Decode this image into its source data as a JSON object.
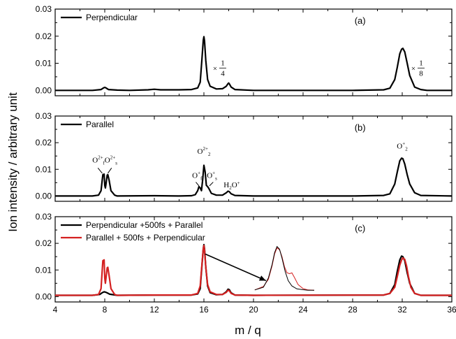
{
  "chart_data": {
    "type": "line",
    "xlabel": "m / q",
    "ylabel": "Ion intensity / arbitrary unit",
    "xlim": [
      4,
      36
    ],
    "xticks": [
      "4",
      "8",
      "12",
      "16",
      "20",
      "24",
      "28",
      "32",
      "36"
    ],
    "panels": [
      {
        "label": "(a)",
        "ylim": [
          -0.002,
          0.03
        ],
        "yticks": [
          "0.00",
          "0.01",
          "0.02",
          "0.03"
        ],
        "legend_position": "top-left",
        "series": [
          {
            "name": "Perpendicular",
            "color": "#000000",
            "x": [
              4.0,
              5.0,
              6.0,
              7.0,
              7.7,
              7.9,
              8.0,
              8.1,
              8.3,
              9.0,
              10.0,
              11.5,
              12.0,
              12.5,
              14.0,
              15.0,
              15.5,
              15.7,
              15.85,
              15.95,
              16.0,
              16.05,
              16.15,
              16.3,
              16.5,
              17.0,
              17.5,
              17.8,
              17.95,
              18.0,
              18.05,
              18.2,
              18.5,
              20.0,
              24.0,
              28.0,
              30.5,
              31.0,
              31.4,
              31.6,
              31.8,
              31.95,
              32.05,
              32.2,
              32.4,
              32.6,
              33.0,
              33.5,
              34.0,
              36.0
            ],
            "y": [
              0.0,
              0.0,
              0.0,
              0.0,
              0.0003,
              0.0009,
              0.0011,
              0.0009,
              0.0003,
              0.0001,
              0.0,
              0.0002,
              0.0004,
              0.0002,
              0.0002,
              0.0003,
              0.0009,
              0.003,
              0.012,
              0.0185,
              0.0198,
              0.0182,
              0.011,
              0.004,
              0.0015,
              0.0005,
              0.0006,
              0.0015,
              0.0025,
              0.0027,
              0.0024,
              0.0012,
              0.0003,
              0.0,
              0.0,
              0.0,
              0.0002,
              0.0008,
              0.004,
              0.0085,
              0.0135,
              0.0152,
              0.0155,
              0.0142,
              0.01,
              0.0055,
              0.0012,
              0.0003,
              0.0,
              0.0
            ]
          }
        ],
        "annotations": [
          {
            "text_prefix": "×",
            "num": "1",
            "den": "4",
            "x": 16.9,
            "y": -0.0005
          },
          {
            "text_prefix": "×",
            "num": "1",
            "den": "8",
            "x": 32.9,
            "y": -0.0005
          }
        ]
      },
      {
        "label": "(b)",
        "ylim": [
          -0.002,
          0.03
        ],
        "yticks": [
          "0.00",
          "0.01",
          "0.02",
          "0.03"
        ],
        "legend_position": "top-left",
        "series": [
          {
            "name": "Parallel",
            "color": "#000000",
            "x": [
              4.0,
              7.0,
              7.5,
              7.7,
              7.8,
              7.85,
              7.95,
              8.0,
              8.05,
              8.1,
              8.2,
              8.25,
              8.35,
              8.5,
              8.8,
              9.0,
              12.0,
              14.0,
              15.0,
              15.3,
              15.5,
              15.6,
              15.7,
              15.8,
              15.9,
              16.0,
              16.1,
              16.2,
              16.3,
              16.4,
              16.6,
              17.0,
              17.5,
              17.8,
              17.95,
              18.05,
              18.2,
              18.5,
              20.0,
              28.0,
              30.5,
              31.0,
              31.4,
              31.6,
              31.8,
              31.95,
              32.05,
              32.2,
              32.4,
              32.6,
              33.0,
              33.5,
              36.0
            ],
            "y": [
              0.0,
              0.0,
              0.0003,
              0.002,
              0.006,
              0.008,
              0.0082,
              0.004,
              0.003,
              0.0045,
              0.0078,
              0.008,
              0.006,
              0.002,
              0.0003,
              0.0,
              0.0001,
              0.0,
              0.0001,
              0.0005,
              0.002,
              0.0035,
              0.003,
              0.002,
              0.006,
              0.0115,
              0.009,
              0.004,
              0.0035,
              0.0028,
              0.001,
              0.0003,
              0.0003,
              0.0012,
              0.0018,
              0.0016,
              0.0008,
              0.0002,
              0.0,
              0.0,
              0.0002,
              0.0008,
              0.0045,
              0.009,
              0.0132,
              0.0142,
              0.014,
              0.012,
              0.008,
              0.0045,
              0.0012,
              0.0002,
              0.0
            ]
          }
        ],
        "annotations": [
          {
            "base": "O",
            "sup": "2+",
            "sub": "f",
            "x": 7.5,
            "y": 0.0125
          },
          {
            "base": "O",
            "sup": "2+",
            "sub": "s",
            "x": 8.5,
            "y": 0.0125
          },
          {
            "base": "O",
            "sup": "2+",
            "sub": "2",
            "x": 16.0,
            "y": 0.0158
          },
          {
            "base": "O",
            "sup": "+",
            "sub": "f",
            "x": 15.45,
            "y": 0.0068
          },
          {
            "base": "O",
            "sup": "+",
            "sub": "s",
            "x": 16.65,
            "y": 0.0068
          },
          {
            "base": "H",
            "sub": "2",
            "tail": "O",
            "sup": "+",
            "x": 18.25,
            "y": 0.0033
          },
          {
            "base": "O",
            "sup": "+",
            "sub": "2",
            "x": 32.0,
            "y": 0.0178
          }
        ]
      },
      {
        "label": "(c)",
        "ylim": [
          -0.002,
          0.03
        ],
        "yticks": [
          "0.00",
          "0.01",
          "0.02",
          "0.03"
        ],
        "legend_position": "top-left",
        "series": [
          {
            "name": "Perpendicular +500fs + Parallel",
            "color": "#000000",
            "x": [
              4.0,
              7.0,
              7.6,
              7.8,
              7.95,
              8.05,
              8.2,
              8.4,
              9.0,
              12.0,
              15.0,
              15.5,
              15.7,
              15.85,
              15.95,
              16.0,
              16.05,
              16.15,
              16.3,
              16.5,
              17.0,
              17.5,
              17.8,
              17.95,
              18.05,
              18.2,
              18.5,
              20.0,
              30.5,
              31.0,
              31.4,
              31.6,
              31.8,
              31.95,
              32.05,
              32.2,
              32.4,
              32.6,
              33.0,
              33.5,
              36.0
            ],
            "y": [
              0.0005,
              0.0005,
              0.0008,
              0.0015,
              0.0018,
              0.0017,
              0.0014,
              0.0009,
              0.0005,
              0.0006,
              0.0006,
              0.001,
              0.003,
              0.012,
              0.018,
              0.0195,
              0.018,
              0.011,
              0.004,
              0.0015,
              0.0007,
              0.0008,
              0.0018,
              0.0028,
              0.0026,
              0.0014,
              0.0006,
              0.0005,
              0.0006,
              0.0012,
              0.0045,
              0.0095,
              0.0138,
              0.0152,
              0.015,
              0.0135,
              0.009,
              0.005,
              0.0012,
              0.0005,
              0.0005
            ]
          },
          {
            "name": "Parallel + 500fs + Perpendicular",
            "color": "#d42020",
            "x": [
              4.0,
              7.0,
              7.5,
              7.7,
              7.8,
              7.85,
              7.95,
              8.0,
              8.05,
              8.1,
              8.2,
              8.25,
              8.35,
              8.5,
              8.8,
              9.0,
              12.0,
              15.0,
              15.5,
              15.7,
              15.85,
              15.95,
              16.0,
              16.05,
              16.15,
              16.3,
              16.5,
              17.0,
              17.5,
              17.8,
              17.95,
              18.05,
              18.2,
              18.5,
              20.0,
              30.5,
              31.0,
              31.4,
              31.6,
              31.8,
              31.95,
              32.05,
              32.2,
              32.35,
              32.5,
              32.7,
              33.0,
              33.5,
              36.0
            ],
            "y": [
              0.0005,
              0.0005,
              0.0008,
              0.003,
              0.01,
              0.0135,
              0.0138,
              0.007,
              0.005,
              0.007,
              0.0108,
              0.011,
              0.008,
              0.003,
              0.0008,
              0.0005,
              0.0006,
              0.0006,
              0.0012,
              0.004,
              0.0125,
              0.018,
              0.0192,
              0.0175,
              0.011,
              0.0045,
              0.0018,
              0.0008,
              0.0008,
              0.0016,
              0.0024,
              0.0022,
              0.0012,
              0.0006,
              0.0005,
              0.0006,
              0.0012,
              0.0035,
              0.0075,
              0.0118,
              0.0138,
              0.0145,
              0.014,
              0.0115,
              0.0075,
              0.0035,
              0.0012,
              0.0005,
              0.0005
            ]
          }
        ],
        "inset": {
          "description": "zoomed O2 2+ peak comparison",
          "from_point": {
            "x": 16.1,
            "y": 0.016
          },
          "to_point": {
            "x": 21.0,
            "y": 0.006
          },
          "x_range": [
            20.0,
            25.0
          ],
          "y_range": [
            0.002,
            0.02
          ],
          "black": {
            "x": [
              20.1,
              20.8,
              21.2,
              21.5,
              21.7,
              21.9,
              22.1,
              22.3,
              22.55,
              22.8,
              23.1,
              23.5,
              24.0,
              24.4,
              24.9
            ],
            "y": [
              0.0025,
              0.0035,
              0.007,
              0.012,
              0.0165,
              0.0188,
              0.0178,
              0.0145,
              0.0095,
              0.006,
              0.004,
              0.0029,
              0.0026,
              0.0024,
              0.0024
            ]
          },
          "red": {
            "x": [
              20.1,
              20.8,
              21.2,
              21.5,
              21.7,
              21.9,
              22.1,
              22.3,
              22.5,
              22.7,
              22.9,
              23.1,
              23.3,
              23.6,
              24.0,
              24.4,
              24.9
            ],
            "y": [
              0.0025,
              0.0038,
              0.0065,
              0.0115,
              0.016,
              0.0183,
              0.0176,
              0.015,
              0.0112,
              0.009,
              0.0086,
              0.0089,
              0.0072,
              0.0045,
              0.003,
              0.0025,
              0.0024
            ]
          }
        }
      }
    ]
  }
}
